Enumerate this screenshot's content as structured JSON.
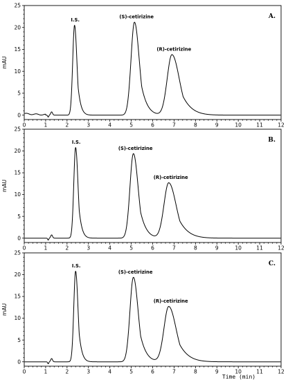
{
  "chart_data": [
    {
      "type": "line",
      "panel_label": "A.",
      "ylabel": "mAU",
      "xlim": [
        0,
        12
      ],
      "ylim": [
        -1,
        25
      ],
      "x_ticks": [
        "0",
        "1",
        "2",
        "3",
        "4",
        "5",
        "6",
        "7",
        "8",
        "9",
        "10",
        "11",
        "12"
      ],
      "y_ticks": [
        "0",
        "5",
        "10",
        "15",
        "20",
        "25"
      ],
      "peaks": [
        {
          "label": "I.S.",
          "rt": 2.35,
          "height": 20.5
        },
        {
          "label": "(S)-cetirizine",
          "rt": 5.15,
          "height": 21.2
        },
        {
          "label": "(R)-cetirizine",
          "rt": 6.9,
          "height": 13.8
        }
      ]
    },
    {
      "type": "line",
      "panel_label": "B.",
      "ylabel": "mAU",
      "xlim": [
        0,
        12
      ],
      "ylim": [
        -1,
        25
      ],
      "x_ticks": [
        "0",
        "1",
        "2",
        "3",
        "4",
        "5",
        "6",
        "7",
        "8",
        "9",
        "10",
        "11",
        "12"
      ],
      "y_ticks": [
        "0",
        "5",
        "10",
        "15",
        "20",
        "25"
      ],
      "peaks": [
        {
          "label": "I.S.",
          "rt": 2.4,
          "height": 20.8
        },
        {
          "label": "(S)-cetirizine",
          "rt": 5.1,
          "height": 19.4
        },
        {
          "label": "(R)-cetirizine",
          "rt": 6.75,
          "height": 12.7
        }
      ]
    },
    {
      "type": "line",
      "panel_label": "C.",
      "ylabel": "mAU",
      "xlabel": "Time (min)",
      "xlim": [
        0,
        12
      ],
      "ylim": [
        -1,
        25
      ],
      "x_ticks": [
        "0",
        "1",
        "2",
        "3",
        "4",
        "5",
        "6",
        "7",
        "8",
        "9",
        "10",
        "11",
        "12"
      ],
      "y_ticks": [
        "0",
        "5",
        "10",
        "15",
        "20",
        "25"
      ],
      "peaks": [
        {
          "label": "I.S.",
          "rt": 2.4,
          "height": 20.8
        },
        {
          "label": "(S)-cetirizine",
          "rt": 5.1,
          "height": 19.4
        },
        {
          "label": "(R)-cetirizine",
          "rt": 6.75,
          "height": 12.7
        }
      ]
    }
  ]
}
